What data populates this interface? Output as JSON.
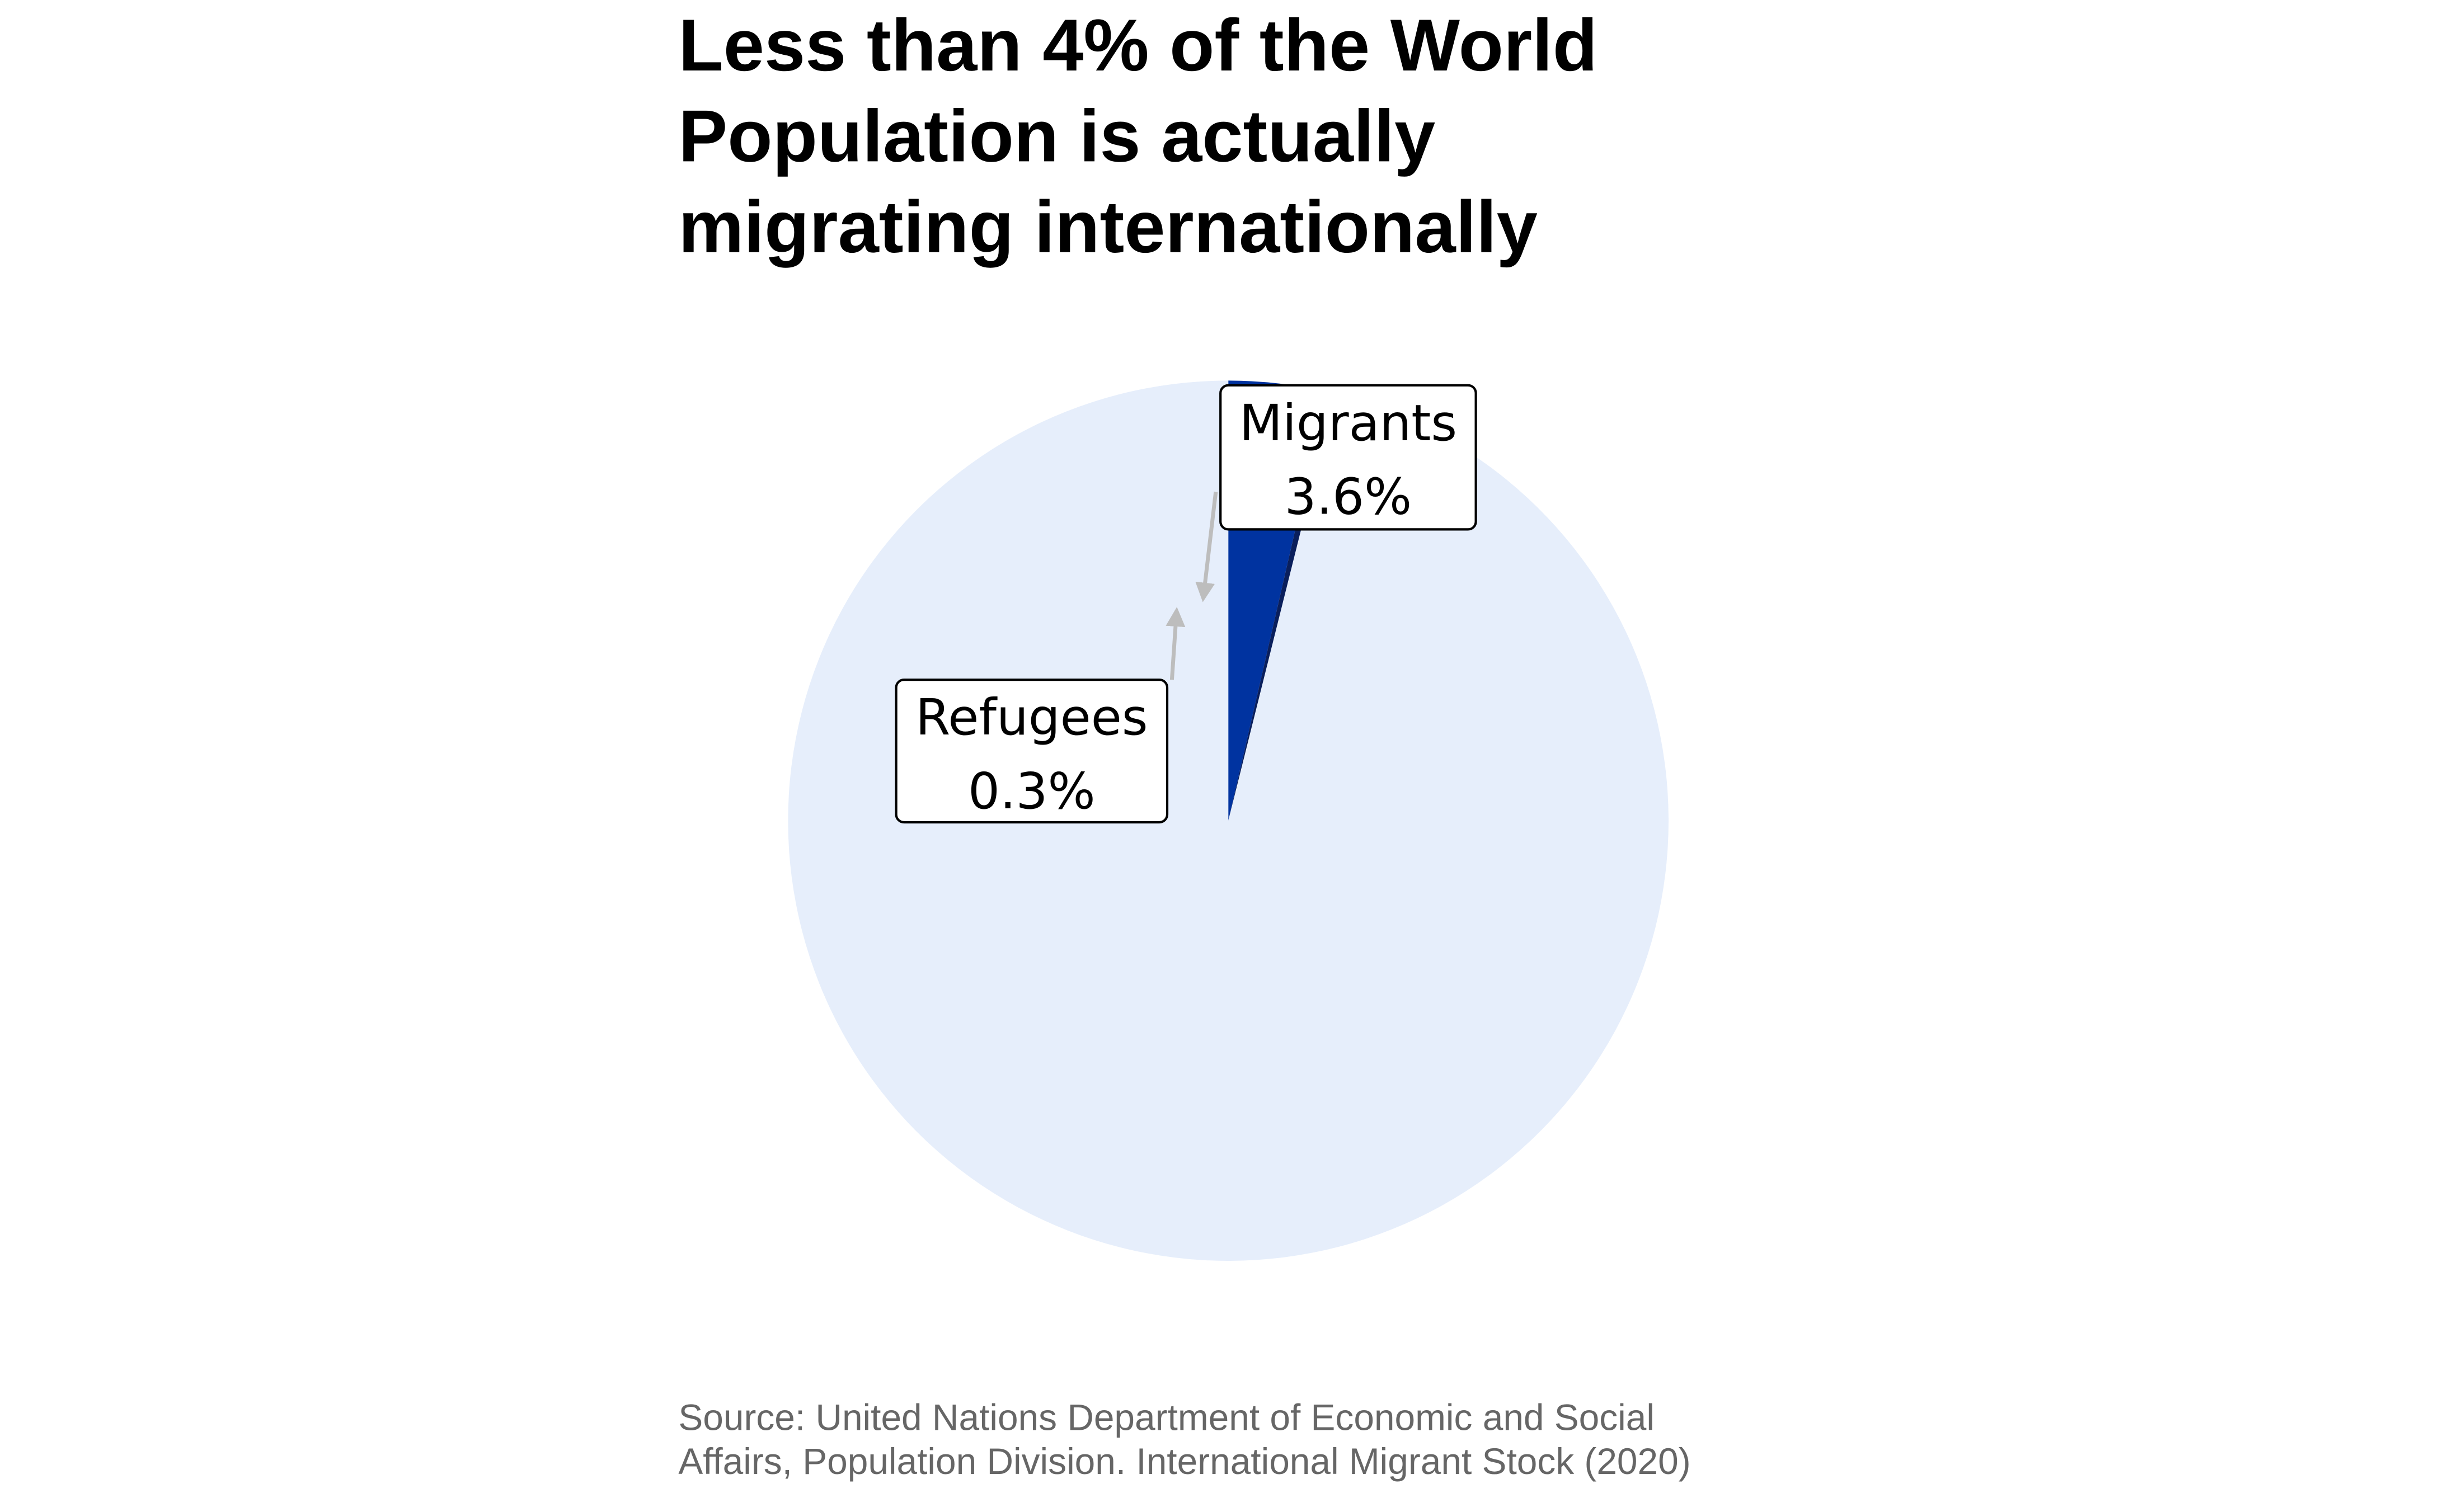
{
  "chart_data": {
    "type": "pie",
    "title_lines": [
      "Less than 4% of the World",
      "Population is actually",
      "migrating internationally"
    ],
    "source_lines": [
      "Source: United Nations Department of Economic and Social",
      "Affairs, Population Division. International Migrant Stock (2020)"
    ],
    "slices": [
      {
        "label": "Migrants",
        "value": 3.6,
        "display": "3.6%",
        "color": "#0033a0"
      },
      {
        "label": "Refugees",
        "value": 0.3,
        "display": "0.3%",
        "color": "#0a1f5c"
      },
      {
        "value": 96.1,
        "color": "#e6eefb"
      }
    ],
    "annotation_arrow_color": "#bdbdbd",
    "label_box_border": "#000000",
    "legend": "none"
  }
}
